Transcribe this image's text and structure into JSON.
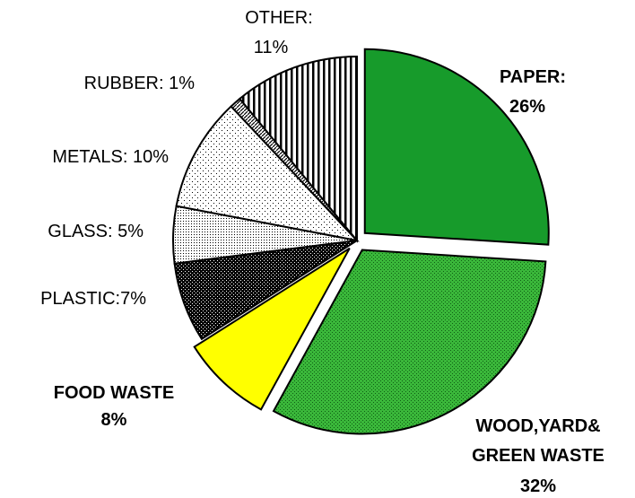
{
  "colors": {
    "paper": "#179b2b",
    "wood": "#3ab73a",
    "food": "#ffff00",
    "plastic": "#222222",
    "glass": "#ffffff",
    "metals": "#ffffff",
    "rubber": "#ffffff",
    "other": "#ffffff"
  },
  "chart_data": {
    "type": "pie",
    "title": "",
    "slices": [
      {
        "key": "paper",
        "label": "PAPER:",
        "value_label": "26%",
        "value": 26,
        "exploded": true,
        "bold": true,
        "pattern": "solid"
      },
      {
        "key": "wood",
        "label": "WOOD,YARD&",
        "label2": "GREEN WASTE",
        "value_label": "32%",
        "value": 32,
        "exploded": true,
        "bold": true,
        "pattern": "dots-green"
      },
      {
        "key": "food",
        "label": "FOOD WASTE",
        "value_label": "8%",
        "value": 8,
        "exploded": true,
        "bold": true,
        "pattern": "solid"
      },
      {
        "key": "plastic",
        "label": "PLASTIC:7%",
        "value": 7,
        "exploded": false,
        "bold": false,
        "pattern": "checker"
      },
      {
        "key": "glass",
        "label": "GLASS: 5%",
        "value": 5,
        "exploded": false,
        "bold": false,
        "pattern": "dense-dots"
      },
      {
        "key": "metals",
        "label": "METALS: 10%",
        "value": 10,
        "exploded": false,
        "bold": false,
        "pattern": "sparse-dots"
      },
      {
        "key": "rubber",
        "label": "RUBBER: 1%",
        "value": 1,
        "exploded": false,
        "bold": false,
        "pattern": "diagonal"
      },
      {
        "key": "other",
        "label": "OTHER:",
        "value_label": "11%",
        "value": 11,
        "exploded": false,
        "bold": false,
        "pattern": "vertical-stripes"
      }
    ]
  }
}
